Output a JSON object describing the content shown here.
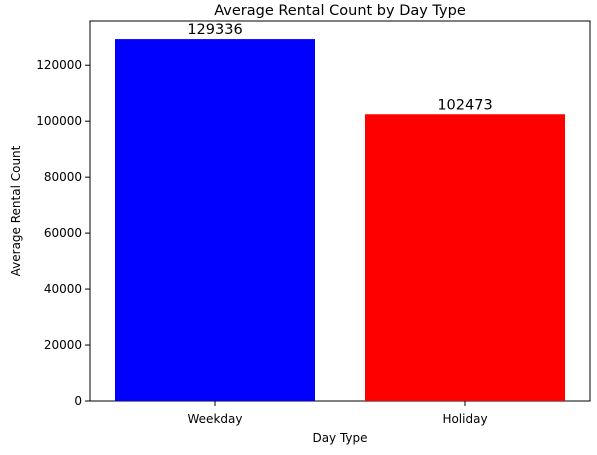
{
  "chart_data": {
    "type": "bar",
    "title": "Average Rental Count by Day Type",
    "xlabel": "Day Type",
    "ylabel": "Average Rental Count",
    "categories": [
      "Weekday",
      "Holiday"
    ],
    "values": [
      129336,
      102473
    ],
    "value_labels": [
      "129336",
      "102473"
    ],
    "colors": [
      "#0000ff",
      "#ff0000"
    ],
    "ylim": [
      0,
      135800
    ],
    "yticks": [
      0,
      20000,
      40000,
      60000,
      80000,
      100000,
      120000
    ],
    "ytick_labels": [
      "0",
      "20000",
      "40000",
      "60000",
      "80000",
      "100000",
      "120000"
    ],
    "grid": false,
    "legend": "none"
  }
}
